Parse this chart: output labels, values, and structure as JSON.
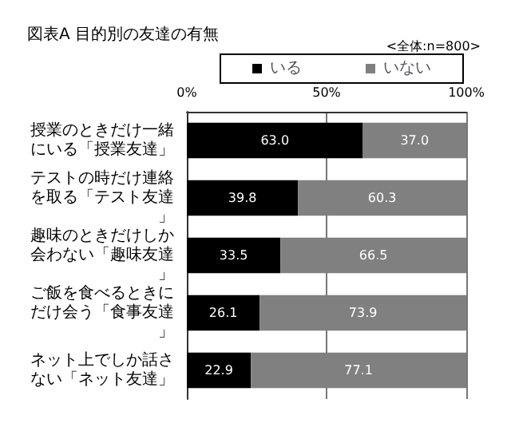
{
  "chart_data": {
    "type": "bar",
    "orientation": "horizontal",
    "stacked": true,
    "title": "図表A 目的別の友達の有無",
    "annotations": [
      "<全体:n=800>"
    ],
    "categories": [
      "授業のときだけ一緒にいる「授業友達」",
      "テストの時だけ連絡を取る「テスト友達」",
      "趣味のときだけしか会わない「趣味友達」",
      "ご飯を食べるときにだけ会う「食事友達」",
      "ネット上でしか話さない「ネット友達」"
    ],
    "series": [
      {
        "name": "いる",
        "color": "#000000",
        "values": [
          63.0,
          39.8,
          33.5,
          26.1,
          22.9
        ],
        "value_labels": [
          "63.0",
          "39.8",
          "33.5",
          "26.1",
          "22.9"
        ]
      },
      {
        "name": "いない",
        "color": "#808080",
        "values": [
          37.0,
          60.3,
          66.5,
          73.9,
          77.1
        ],
        "value_labels": [
          "37.0",
          "60.3",
          "66.5",
          "73.9",
          "77.1"
        ]
      }
    ],
    "xlim": [
      0,
      100
    ],
    "xticks": [
      {
        "value": 0,
        "label": "0%"
      },
      {
        "value": 50,
        "label": "50%"
      },
      {
        "value": 100,
        "label": "100%"
      }
    ],
    "grid": "x",
    "legend": "top"
  }
}
